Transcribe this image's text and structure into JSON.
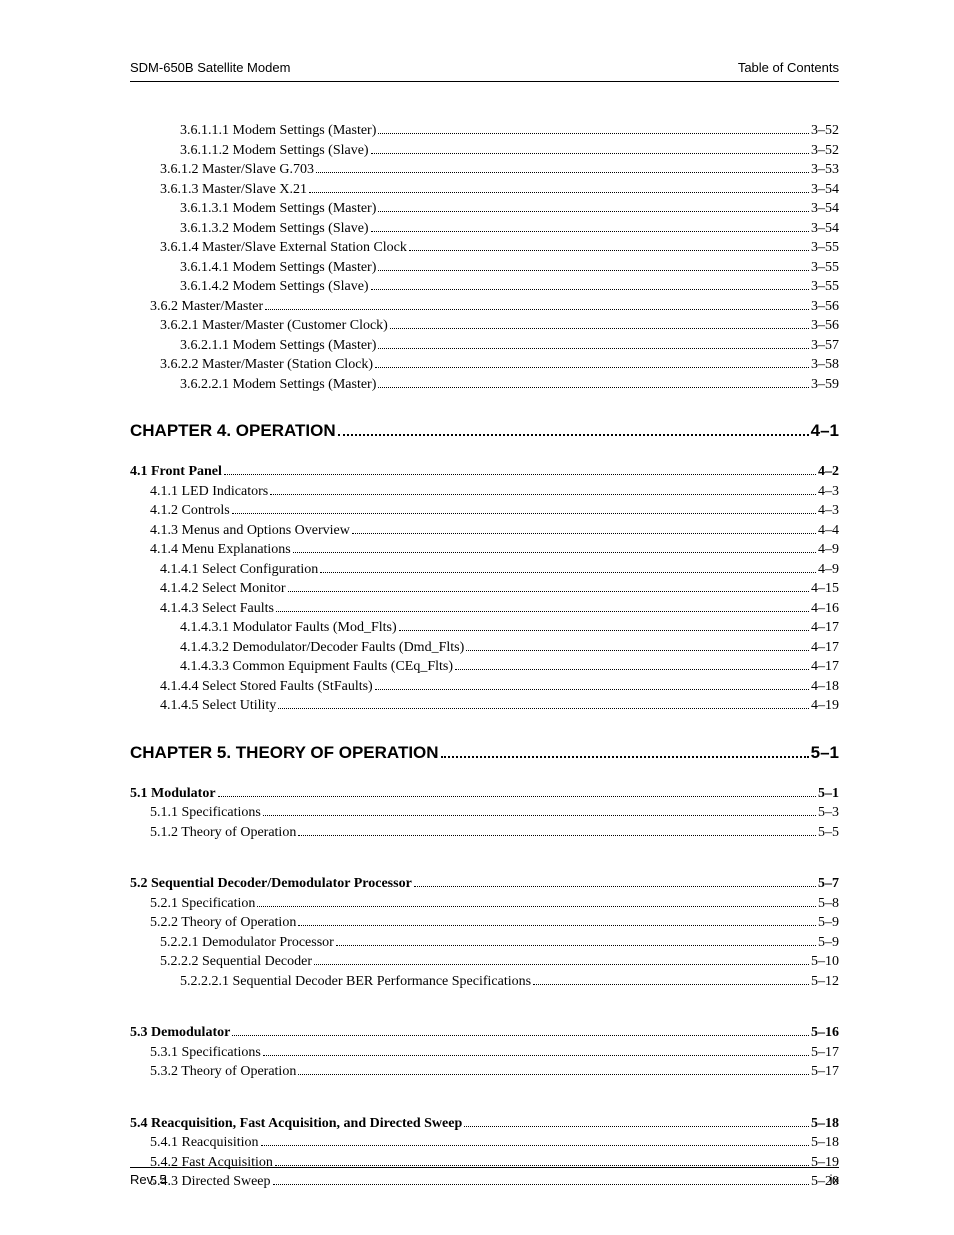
{
  "header": {
    "left": "SDM-650B Satellite Modem",
    "right": "Table of Contents"
  },
  "footer": {
    "left": "Rev. 5",
    "right": "ix"
  },
  "entries": [
    {
      "label": "3.6.1.1.1  Modem Settings (Master)",
      "page": "3–52",
      "indent": 3
    },
    {
      "label": "3.6.1.1.2  Modem Settings (Slave)",
      "page": "3–52",
      "indent": 3
    },
    {
      "label": "3.6.1.2  Master/Slave G.703",
      "page": "3–53",
      "indent": 2
    },
    {
      "label": "3.6.1.3  Master/Slave X.21",
      "page": "3–54",
      "indent": 2
    },
    {
      "label": "3.6.1.3.1  Modem Settings (Master)",
      "page": "3–54",
      "indent": 3
    },
    {
      "label": "3.6.1.3.2  Modem Settings (Slave)",
      "page": "3–54",
      "indent": 3
    },
    {
      "label": "3.6.1.4  Master/Slave External Station Clock",
      "page": "3–55",
      "indent": 2
    },
    {
      "label": "3.6.1.4.1  Modem Settings (Master)",
      "page": "3–55",
      "indent": 3
    },
    {
      "label": "3.6.1.4.2  Modem Settings (Slave)",
      "page": "3–55",
      "indent": 3
    },
    {
      "label": "3.6.2  Master/Master",
      "page": "3–56",
      "indent": 1
    },
    {
      "label": "3.6.2.1  Master/Master (Customer Clock)",
      "page": "3–56",
      "indent": 2
    },
    {
      "label": "3.6.2.1.1  Modem Settings (Master)",
      "page": "3–57",
      "indent": 3
    },
    {
      "label": "3.6.2.2  Master/Master (Station Clock)",
      "page": "3–58",
      "indent": 2
    },
    {
      "label": "3.6.2.2.1  Modem Settings (Master)",
      "page": "3–59",
      "indent": 3
    }
  ],
  "chapter4_title": "CHAPTER 4.  OPERATION",
  "chapter4_page": "4–1",
  "ch4_entries": [
    {
      "label": "4.1  Front Panel",
      "page": "4–2",
      "indent": 0,
      "bold": true
    },
    {
      "label": "4.1.1  LED Indicators",
      "page": "4–3",
      "indent": 1
    },
    {
      "label": "4.1.2  Controls",
      "page": "4–3",
      "indent": 1
    },
    {
      "label": "4.1.3  Menus and Options Overview",
      "page": "4–4",
      "indent": 1
    },
    {
      "label": "4.1.4  Menu Explanations",
      "page": "4–9",
      "indent": 1
    },
    {
      "label": "4.1.4.1  Select Configuration",
      "page": "4–9",
      "indent": 2
    },
    {
      "label": "4.1.4.2  Select Monitor",
      "page": "4–15",
      "indent": 2
    },
    {
      "label": "4.1.4.3  Select Faults",
      "page": "4–16",
      "indent": 2
    },
    {
      "label": "4.1.4.3.1  Modulator Faults (Mod_Flts)",
      "page": "4–17",
      "indent": 3
    },
    {
      "label": "4.1.4.3.2  Demodulator/Decoder Faults (Dmd_Flts)",
      "page": "4–17",
      "indent": 3
    },
    {
      "label": "4.1.4.3.3  Common Equipment Faults (CEq_Flts)",
      "page": "4–17",
      "indent": 3
    },
    {
      "label": "4.1.4.4  Select Stored Faults (StFaults)",
      "page": "4–18",
      "indent": 2
    },
    {
      "label": "4.1.4.5  Select Utility",
      "page": "4–19",
      "indent": 2
    }
  ],
  "chapter5_title": "CHAPTER 5.  THEORY OF OPERATION",
  "chapter5_page": "5–1",
  "ch5_blocks": [
    [
      {
        "label": "5.1  Modulator",
        "page": "5–1",
        "indent": 0,
        "bold": true
      },
      {
        "label": "5.1.1  Specifications",
        "page": "5–3",
        "indent": 1
      },
      {
        "label": "5.1.2  Theory of Operation",
        "page": "5–5",
        "indent": 1
      }
    ],
    [
      {
        "label": "5.2  Sequential Decoder/Demodulator Processor",
        "page": "5–7",
        "indent": 0,
        "bold": true
      },
      {
        "label": "5.2.1  Specification",
        "page": "5–8",
        "indent": 1
      },
      {
        "label": "5.2.2  Theory of Operation",
        "page": "5–9",
        "indent": 1
      },
      {
        "label": "5.2.2.1  Demodulator Processor",
        "page": "5–9",
        "indent": 2
      },
      {
        "label": "5.2.2.2  Sequential Decoder",
        "page": "5–10",
        "indent": 2
      },
      {
        "label": "5.2.2.2.1  Sequential Decoder BER Performance Specifications",
        "page": "5–12",
        "indent": 3
      }
    ],
    [
      {
        "label": "5.3  Demodulator",
        "page": "5–16",
        "indent": 0,
        "bold": true
      },
      {
        "label": "5.3.1  Specifications",
        "page": "5–17",
        "indent": 1
      },
      {
        "label": "5.3.2  Theory of Operation",
        "page": "5–17",
        "indent": 1
      }
    ],
    [
      {
        "label": "5.4  Reacquisition, Fast Acquisition, and Directed Sweep",
        "page": "5–18",
        "indent": 0,
        "bold": true
      },
      {
        "label": "5.4.1  Reacquisition",
        "page": "5–18",
        "indent": 1
      },
      {
        "label": "5.4.2  Fast Acquisition",
        "page": "5–19",
        "indent": 1
      },
      {
        "label": "5.4.3  Directed Sweep",
        "page": "5–20",
        "indent": 1
      }
    ]
  ]
}
